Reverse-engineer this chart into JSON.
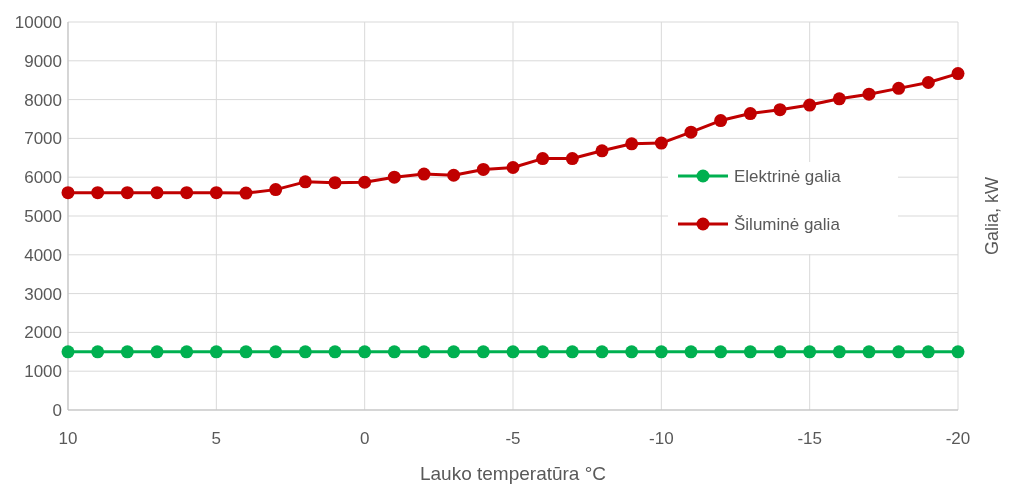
{
  "chart_data": {
    "type": "line",
    "xlabel": "Lauko temperatūra °C",
    "y2label": "Galia, kW",
    "x": [
      10,
      9,
      8,
      7,
      6,
      5,
      4,
      3,
      2,
      1,
      0,
      -1,
      -2,
      -3,
      -4,
      -5,
      -6,
      -7,
      -8,
      -9,
      -10,
      -11,
      -12,
      -13,
      -14,
      -15,
      -16,
      -17,
      -18,
      -19,
      -20
    ],
    "series": [
      {
        "name": "Elektrinė galia",
        "color": "#00b050",
        "values": [
          1500,
          1500,
          1500,
          1500,
          1500,
          1500,
          1500,
          1500,
          1500,
          1500,
          1500,
          1500,
          1500,
          1500,
          1500,
          1500,
          1500,
          1500,
          1500,
          1500,
          1500,
          1500,
          1500,
          1500,
          1500,
          1500,
          1500,
          1500,
          1500,
          1500,
          1500
        ]
      },
      {
        "name": "Šiluminė galia",
        "color": "#c00000",
        "values": [
          5600,
          5600,
          5600,
          5600,
          5600,
          5600,
          5590,
          5680,
          5880,
          5860,
          5870,
          6000,
          6080,
          6050,
          6200,
          6250,
          6480,
          6480,
          6680,
          6860,
          6880,
          7160,
          7460,
          7640,
          7740,
          7860,
          8020,
          8140,
          8290,
          8440,
          8670
        ]
      }
    ],
    "xlim": [
      10,
      -20
    ],
    "xticks": [
      10,
      5,
      0,
      -5,
      -10,
      -15,
      -20
    ],
    "ylim": [
      0,
      10000
    ],
    "yticks": [
      0,
      1000,
      2000,
      3000,
      4000,
      5000,
      6000,
      7000,
      8000,
      9000,
      10000
    ],
    "grid": true,
    "legend": "right",
    "marker": "circle",
    "line_style": "solid"
  }
}
